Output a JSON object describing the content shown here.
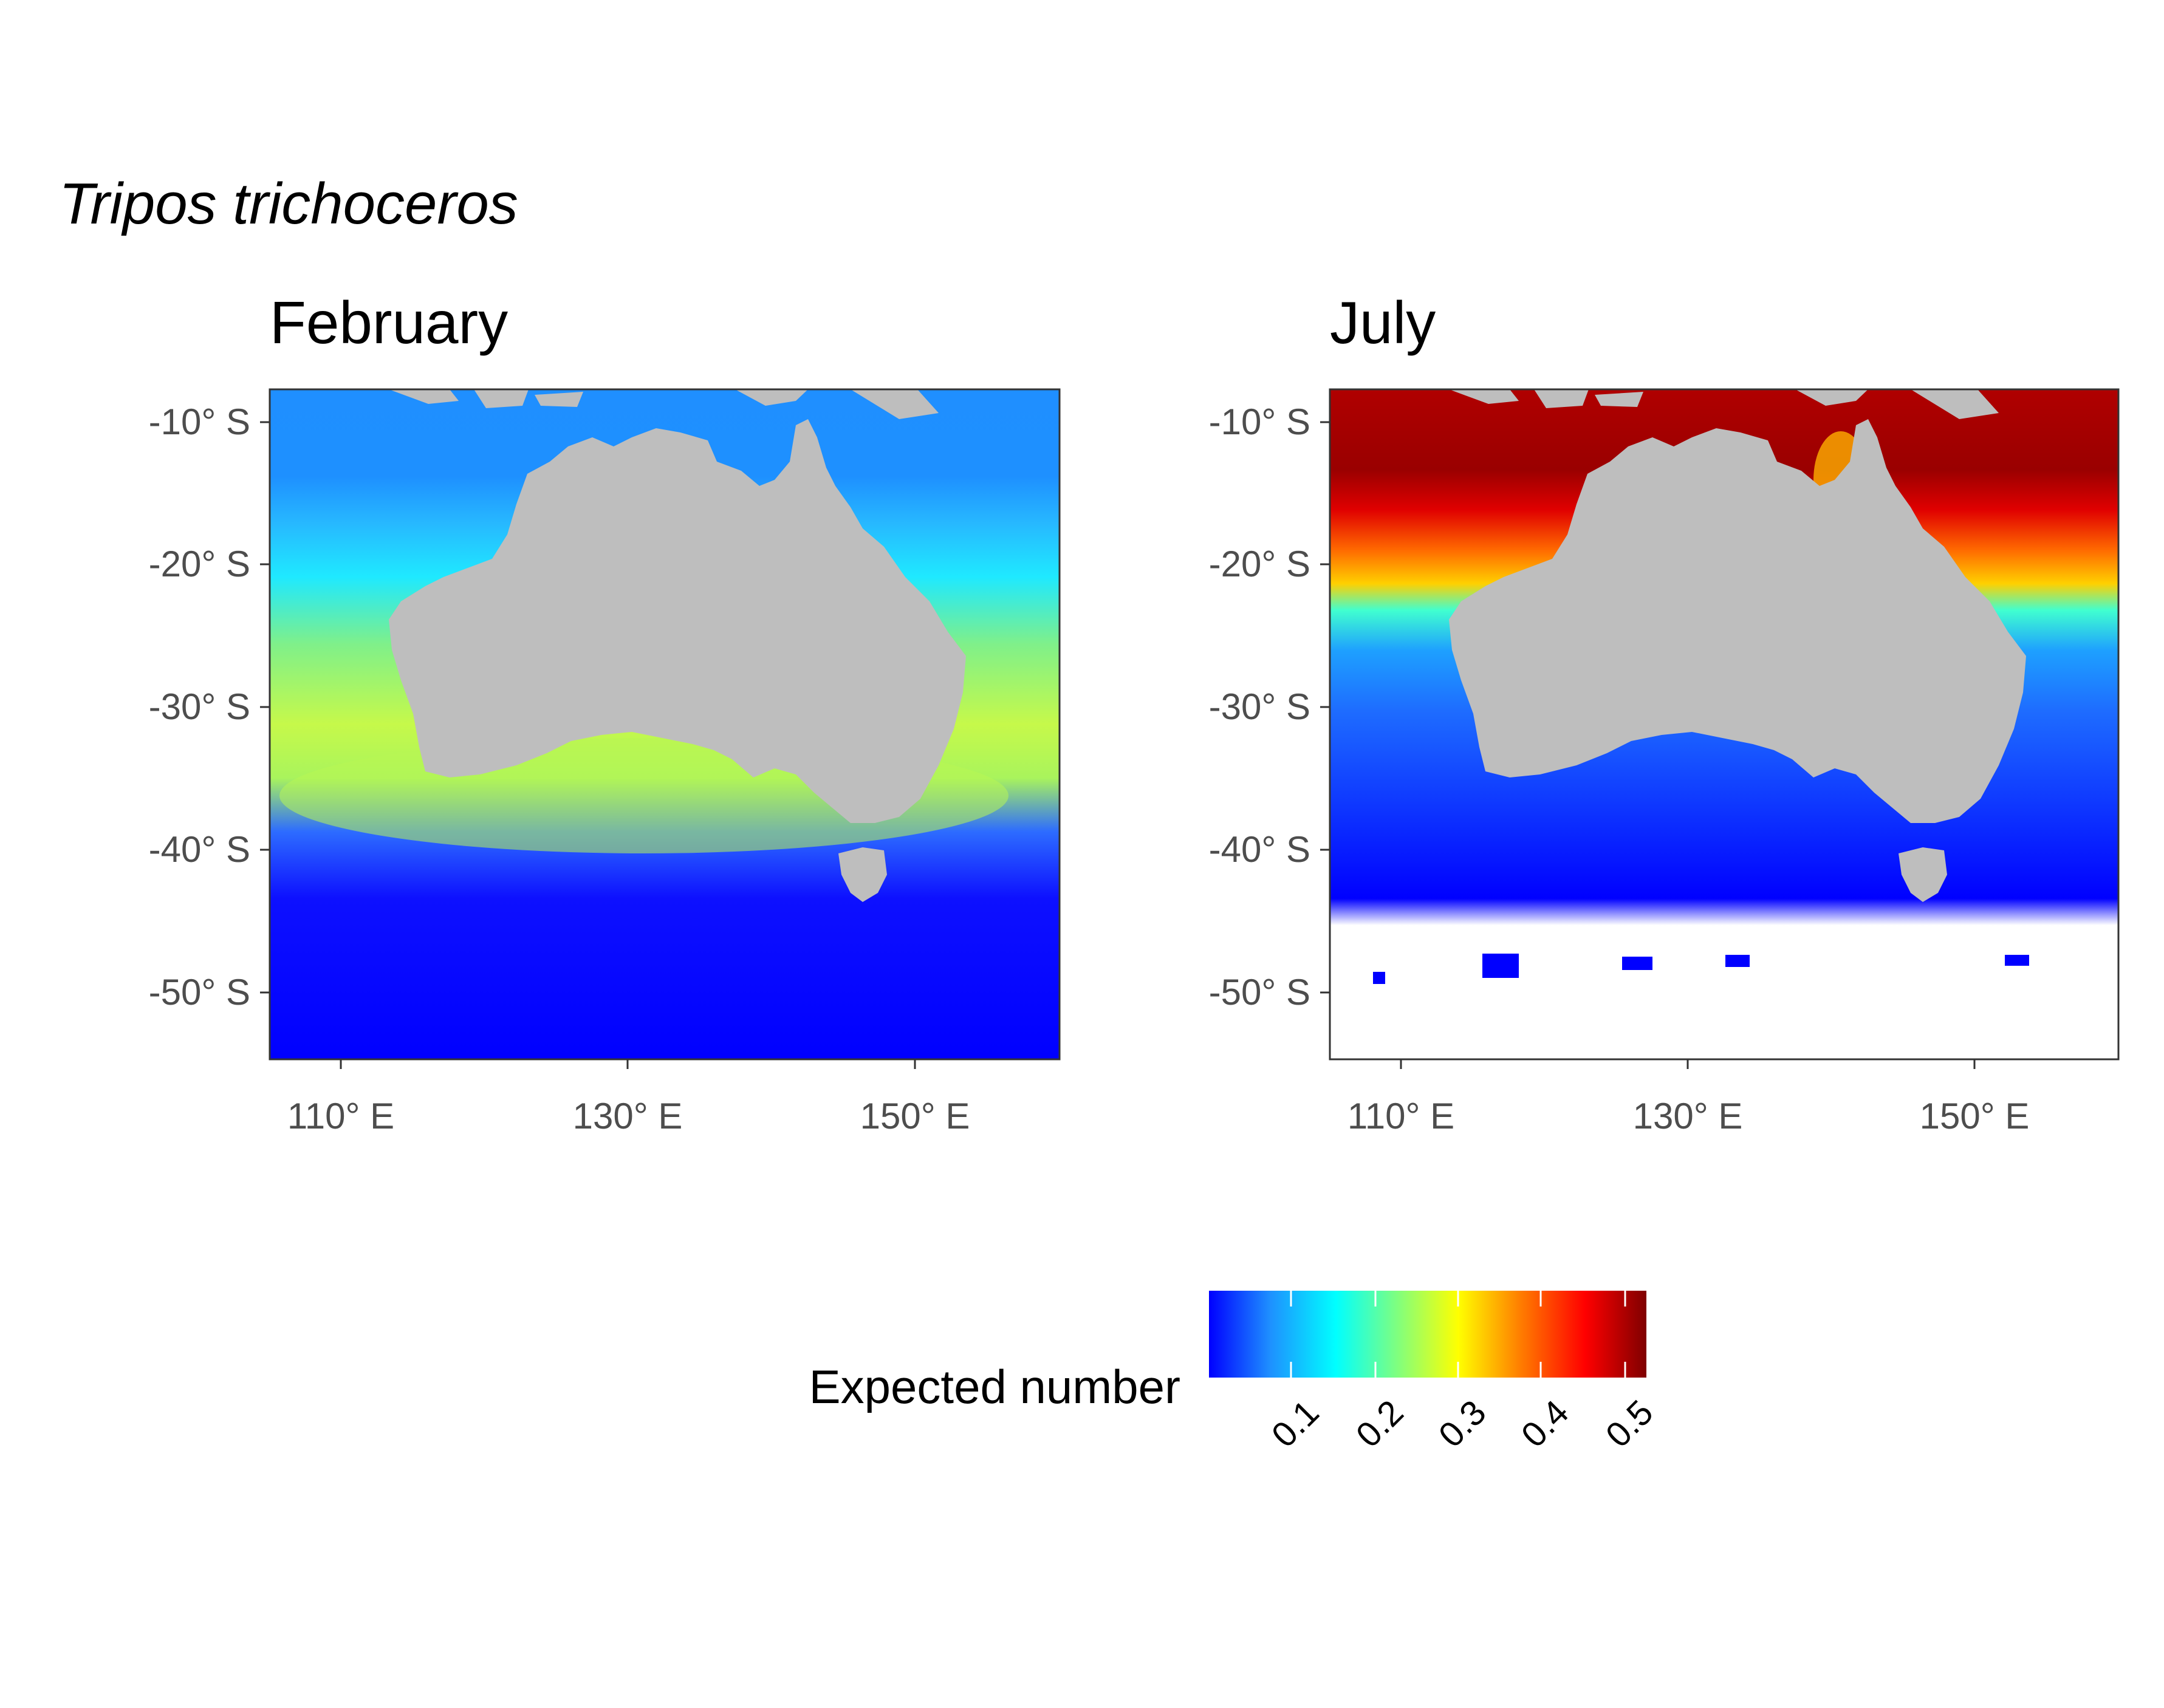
{
  "title": "Tripos trichoceros",
  "panels": [
    {
      "title": "February",
      "lon_range": [
        105,
        160
      ],
      "lat_range": [
        -55,
        -8
      ]
    },
    {
      "title": "July",
      "lon_range": [
        105,
        160
      ],
      "lat_range": [
        -55,
        -8
      ]
    }
  ],
  "axes": {
    "x_ticks": [
      "110° E",
      "130° E",
      "150° E"
    ],
    "x_tick_values": [
      110,
      130,
      150
    ],
    "y_ticks": [
      "-10° S",
      "-20° S",
      "-30° S",
      "-40° S",
      "-50° S"
    ],
    "y_tick_values": [
      -10,
      -20,
      -30,
      -40,
      -50
    ]
  },
  "legend": {
    "title": "Expected number",
    "ticks": [
      "0.1",
      "0.2",
      "0.3",
      "0.4",
      "0.5"
    ],
    "tick_values": [
      0.1,
      0.2,
      0.3,
      0.4,
      0.5
    ],
    "range": [
      0.0,
      0.5
    ]
  },
  "colors": {
    "land": "#bebebe",
    "frame": "#333333",
    "scale": [
      "#0000ff",
      "#1e90ff",
      "#00ffff",
      "#7fff7f",
      "#ffff00",
      "#ff7f00",
      "#ff0000",
      "#7f0000"
    ]
  },
  "chart_data": {
    "type": "heatmap",
    "title": "Tripos trichoceros",
    "xlabel": "",
    "ylabel": "",
    "color_scale_title": "Expected number",
    "color_scale_range": [
      0.0,
      0.5
    ],
    "series": [
      {
        "name": "February",
        "latitude_bands": [
          {
            "lat": [
              -8,
              -12
            ],
            "value": 0.06
          },
          {
            "lat": [
              -12,
              -18
            ],
            "value": 0.08
          },
          {
            "lat": [
              -18,
              -24
            ],
            "value": 0.13
          },
          {
            "lat": [
              -24,
              -32
            ],
            "value": 0.2
          },
          {
            "lat": [
              -32,
              -38
            ],
            "value": 0.22
          },
          {
            "lat": [
              -38,
              -42
            ],
            "value": 0.12
          },
          {
            "lat": [
              -42,
              -55
            ],
            "value": 0.01
          }
        ]
      },
      {
        "name": "July",
        "latitude_bands": [
          {
            "lat": [
              -8,
              -16
            ],
            "value": 0.48
          },
          {
            "lat": [
              -16,
              -20
            ],
            "value": 0.4
          },
          {
            "lat": [
              -20,
              -24
            ],
            "value": 0.3
          },
          {
            "lat": [
              -24,
              -30
            ],
            "value": 0.14
          },
          {
            "lat": [
              -30,
              -38
            ],
            "value": 0.06
          },
          {
            "lat": [
              -38,
              -45
            ],
            "value": 0.02
          },
          {
            "lat": [
              -45,
              -55
            ],
            "value": null
          }
        ]
      }
    ]
  }
}
